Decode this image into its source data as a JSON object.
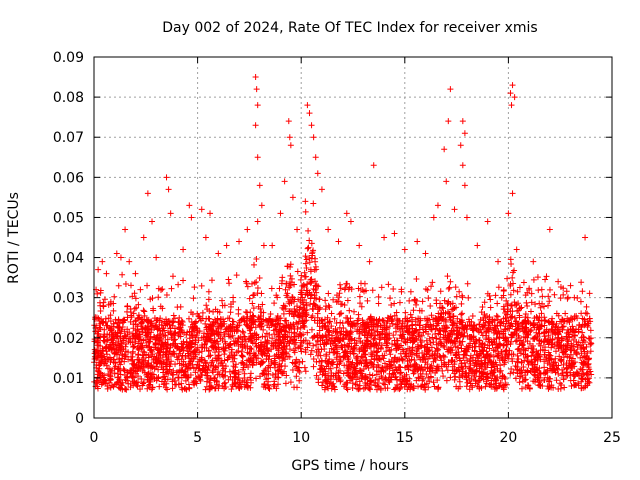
{
  "chart_data": {
    "type": "scatter",
    "title": "Day 002 of 2024, Rate Of TEC Index for receiver xmis",
    "xlabel": "GPS time / hours",
    "ylabel": "ROTI / TECUs",
    "xlim": [
      0,
      25
    ],
    "ylim": [
      0,
      0.09
    ],
    "xticks": [
      0,
      5,
      10,
      15,
      20,
      25
    ],
    "xtick_labels": [
      "0",
      "5",
      "10",
      "15",
      "20",
      "25"
    ],
    "yticks": [
      0,
      0.01,
      0.02,
      0.03,
      0.04,
      0.05,
      0.06,
      0.07,
      0.08,
      0.09
    ],
    "ytick_labels": [
      "0",
      "0.01",
      "0.02",
      "0.03",
      "0.04",
      "0.05",
      "0.06",
      "0.07",
      "0.08",
      "0.09"
    ],
    "grid": true,
    "marker": "+",
    "color": "#ff0000",
    "series": [
      {
        "name": "ROTI",
        "description_of_density": "dense band mostly 0.005-0.03 across 0-24 h",
        "points": [
          [
            0.1,
            0.032
          ],
          [
            0.2,
            0.037
          ],
          [
            0.3,
            0.028
          ],
          [
            0.4,
            0.039
          ],
          [
            0.5,
            0.022
          ],
          [
            0.6,
            0.036
          ],
          [
            1.1,
            0.041
          ],
          [
            1.3,
            0.04
          ],
          [
            1.5,
            0.047
          ],
          [
            1.7,
            0.039
          ],
          [
            2.0,
            0.036
          ],
          [
            2.4,
            0.045
          ],
          [
            2.6,
            0.056
          ],
          [
            2.8,
            0.049
          ],
          [
            3.0,
            0.04
          ],
          [
            3.5,
            0.06
          ],
          [
            3.6,
            0.057
          ],
          [
            3.7,
            0.051
          ],
          [
            4.3,
            0.042
          ],
          [
            4.6,
            0.053
          ],
          [
            4.7,
            0.05
          ],
          [
            5.2,
            0.052
          ],
          [
            5.4,
            0.045
          ],
          [
            5.6,
            0.051
          ],
          [
            6.0,
            0.041
          ],
          [
            6.4,
            0.043
          ],
          [
            7.0,
            0.044
          ],
          [
            7.4,
            0.047
          ],
          [
            7.8,
            0.085
          ],
          [
            7.85,
            0.082
          ],
          [
            7.9,
            0.078
          ],
          [
            7.8,
            0.073
          ],
          [
            7.9,
            0.065
          ],
          [
            8.0,
            0.058
          ],
          [
            8.1,
            0.053
          ],
          [
            7.9,
            0.049
          ],
          [
            8.2,
            0.043
          ],
          [
            8.6,
            0.043
          ],
          [
            9.0,
            0.051
          ],
          [
            9.2,
            0.059
          ],
          [
            9.4,
            0.074
          ],
          [
            9.45,
            0.07
          ],
          [
            9.5,
            0.068
          ],
          [
            9.6,
            0.055
          ],
          [
            9.8,
            0.047
          ],
          [
            10.2,
            0.054
          ],
          [
            10.3,
            0.078
          ],
          [
            10.4,
            0.076
          ],
          [
            10.5,
            0.073
          ],
          [
            10.6,
            0.07
          ],
          [
            10.7,
            0.065
          ],
          [
            10.8,
            0.061
          ],
          [
            11.0,
            0.057
          ],
          [
            11.3,
            0.047
          ],
          [
            11.8,
            0.044
          ],
          [
            12.2,
            0.051
          ],
          [
            12.4,
            0.049
          ],
          [
            12.8,
            0.043
          ],
          [
            13.3,
            0.039
          ],
          [
            13.5,
            0.063
          ],
          [
            14.0,
            0.045
          ],
          [
            14.5,
            0.046
          ],
          [
            15.0,
            0.042
          ],
          [
            15.6,
            0.044
          ],
          [
            16.0,
            0.041
          ],
          [
            16.4,
            0.05
          ],
          [
            16.6,
            0.053
          ],
          [
            16.9,
            0.067
          ],
          [
            17.1,
            0.074
          ],
          [
            17.2,
            0.082
          ],
          [
            17.0,
            0.059
          ],
          [
            17.4,
            0.052
          ],
          [
            17.8,
            0.074
          ],
          [
            17.9,
            0.071
          ],
          [
            17.7,
            0.068
          ],
          [
            17.8,
            0.063
          ],
          [
            17.9,
            0.058
          ],
          [
            18.0,
            0.05
          ],
          [
            18.5,
            0.043
          ],
          [
            19.0,
            0.049
          ],
          [
            19.5,
            0.039
          ],
          [
            20.0,
            0.051
          ],
          [
            20.1,
            0.081
          ],
          [
            20.2,
            0.083
          ],
          [
            20.3,
            0.08
          ],
          [
            20.15,
            0.078
          ],
          [
            20.2,
            0.056
          ],
          [
            20.4,
            0.042
          ],
          [
            21.2,
            0.039
          ],
          [
            22.0,
            0.047
          ],
          [
            22.4,
            0.034
          ],
          [
            23.0,
            0.033
          ],
          [
            23.5,
            0.029
          ],
          [
            23.7,
            0.045
          ],
          [
            23.8,
            0.026
          ]
        ]
      }
    ]
  }
}
